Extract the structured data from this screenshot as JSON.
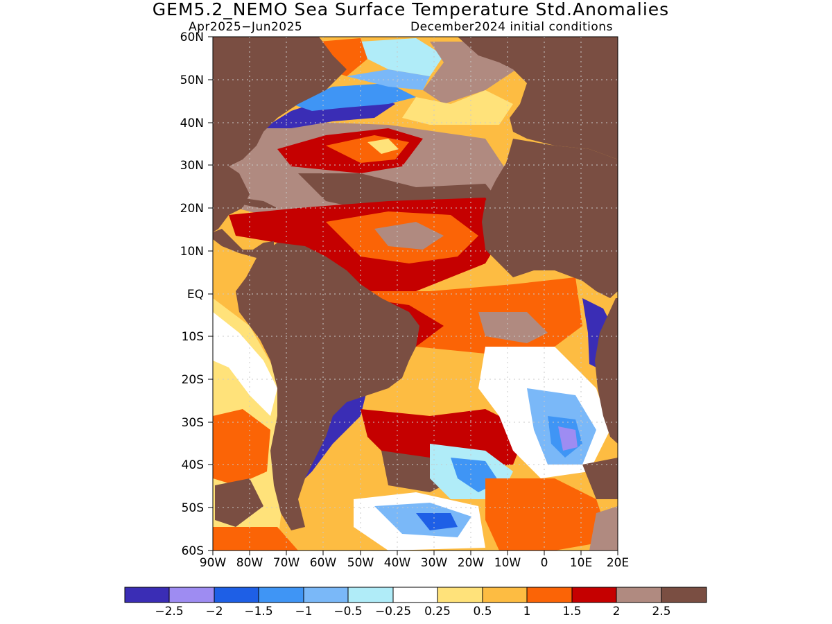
{
  "header": {
    "title": "GEM5.2_NEMO Sea Surface Temperature Std.Anomalies",
    "period": "Apr2025−Jun2025",
    "init": "December2024 initial conditions"
  },
  "map": {
    "lat_labels": [
      "60N",
      "50N",
      "40N",
      "30N",
      "20N",
      "10N",
      "EQ",
      "10S",
      "20S",
      "30S",
      "40S",
      "50S",
      "60S"
    ],
    "lon_labels": [
      "90W",
      "80W",
      "70W",
      "60W",
      "50W",
      "40W",
      "30W",
      "20W",
      "10W",
      "0",
      "10E",
      "20E"
    ],
    "colors": {
      "land": "#7a4e42",
      "ocean_base": "#fdbc42",
      "coast": "#000000",
      "grid": "#c9c9c9"
    }
  },
  "legend": {
    "colors": [
      "#3a2db5",
      "#9e8cf2",
      "#1e5fe6",
      "#3f95f5",
      "#7ab8f8",
      "#b0ecf8",
      "#ffffff",
      "#ffe27a",
      "#fdbc42",
      "#fb6406",
      "#c50000",
      "#b08a80",
      "#7a4e42"
    ],
    "labels": [
      "−2.5",
      "−2",
      "−1.5",
      "−1",
      "−0.5",
      "−0.25",
      "0.25",
      "0.5",
      "1",
      "1.5",
      "2",
      "2.5"
    ]
  }
}
